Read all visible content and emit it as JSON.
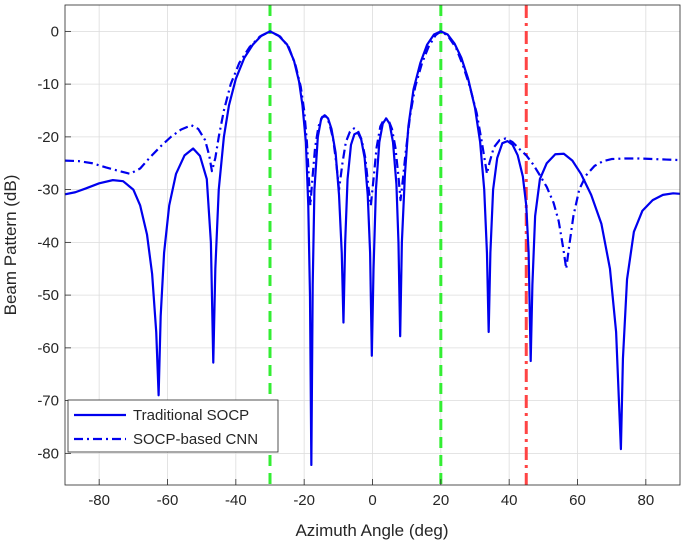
{
  "chart_data": {
    "type": "line",
    "title": "",
    "xlabel": "Azimuth Angle (deg)",
    "ylabel": "Beam Pattern (dB)",
    "xlim": [
      -90,
      90
    ],
    "ylim": [
      -86,
      5
    ],
    "xticks": [
      -80,
      -60,
      -40,
      -20,
      0,
      20,
      40,
      60,
      80
    ],
    "yticks": [
      0,
      -10,
      -20,
      -30,
      -40,
      -50,
      -60,
      -70,
      -80
    ],
    "grid": true,
    "legend": "bottom-left",
    "colors": {
      "series": "#0000ee",
      "desired": "#33ee33",
      "interference": "#ff4444",
      "grid": "#dcdcdc",
      "axis": "#262626"
    },
    "markers": [
      {
        "kind": "desired",
        "x": -30,
        "style": "dashed"
      },
      {
        "kind": "desired",
        "x": 20,
        "style": "dashed"
      },
      {
        "kind": "interference",
        "x": 45,
        "style": "dash-dot"
      }
    ],
    "series": [
      {
        "name": "Traditional SOCP",
        "style": "solid",
        "points": [
          [
            -90,
            -30.9
          ],
          [
            -87,
            -30.5
          ],
          [
            -84,
            -29.8
          ],
          [
            -80,
            -28.8
          ],
          [
            -76,
            -28.2
          ],
          [
            -73,
            -28.4
          ],
          [
            -70,
            -30
          ],
          [
            -68,
            -33
          ],
          [
            -66,
            -38.5
          ],
          [
            -64.5,
            -46
          ],
          [
            -63.3,
            -57
          ],
          [
            -62.6,
            -69
          ],
          [
            -62,
            -54
          ],
          [
            -61,
            -42
          ],
          [
            -59.5,
            -33
          ],
          [
            -57.5,
            -27
          ],
          [
            -55,
            -23.5
          ],
          [
            -52.5,
            -22.2
          ],
          [
            -50.5,
            -23.6
          ],
          [
            -48.5,
            -28
          ],
          [
            -47.3,
            -40
          ],
          [
            -46.6,
            -62.8
          ],
          [
            -46,
            -45
          ],
          [
            -45,
            -30
          ],
          [
            -43.5,
            -20
          ],
          [
            -42,
            -14
          ],
          [
            -40,
            -9
          ],
          [
            -37.5,
            -5
          ],
          [
            -35,
            -2.5
          ],
          [
            -32.5,
            -0.8
          ],
          [
            -30,
            0
          ],
          [
            -27.5,
            -0.8
          ],
          [
            -25,
            -2.5
          ],
          [
            -23,
            -5.5
          ],
          [
            -21.5,
            -9.5
          ],
          [
            -20.5,
            -14
          ],
          [
            -19.5,
            -21
          ],
          [
            -18.8,
            -33
          ],
          [
            -18.3,
            -50
          ],
          [
            -17.9,
            -82.2
          ],
          [
            -17.5,
            -48
          ],
          [
            -17,
            -30
          ],
          [
            -16,
            -20
          ],
          [
            -15,
            -16.5
          ],
          [
            -14,
            -15.9
          ],
          [
            -13,
            -16.5
          ],
          [
            -12,
            -18.5
          ],
          [
            -10.8,
            -23
          ],
          [
            -9.8,
            -31
          ],
          [
            -9,
            -42
          ],
          [
            -8.5,
            -55.2
          ],
          [
            -8,
            -40
          ],
          [
            -7.3,
            -28
          ],
          [
            -6.3,
            -21.5
          ],
          [
            -5.3,
            -19.5
          ],
          [
            -4.3,
            -19.2
          ],
          [
            -3.3,
            -20.5
          ],
          [
            -2.3,
            -24
          ],
          [
            -1.4,
            -31
          ],
          [
            -0.7,
            -42
          ],
          [
            -0.2,
            -61.5
          ],
          [
            0.3,
            -45
          ],
          [
            1,
            -30
          ],
          [
            2,
            -21
          ],
          [
            3,
            -17.5
          ],
          [
            4,
            -16.5
          ],
          [
            5,
            -17.5
          ],
          [
            6,
            -21
          ],
          [
            7,
            -29
          ],
          [
            7.6,
            -40
          ],
          [
            8.1,
            -57.8
          ],
          [
            8.6,
            -40
          ],
          [
            9.5,
            -27
          ],
          [
            10.5,
            -18
          ],
          [
            12,
            -11
          ],
          [
            14,
            -6
          ],
          [
            16,
            -2.5
          ],
          [
            18,
            -0.6
          ],
          [
            20,
            0
          ],
          [
            22,
            -0.6
          ],
          [
            24,
            -2.3
          ],
          [
            26,
            -5
          ],
          [
            28,
            -9
          ],
          [
            30,
            -14.5
          ],
          [
            31.5,
            -21
          ],
          [
            32.7,
            -30
          ],
          [
            33.5,
            -42
          ],
          [
            34,
            -57
          ],
          [
            34.5,
            -42
          ],
          [
            35.3,
            -30
          ],
          [
            36.5,
            -24
          ],
          [
            38,
            -21.2
          ],
          [
            39.5,
            -20.8
          ],
          [
            41,
            -21.5
          ],
          [
            42.5,
            -23.5
          ],
          [
            44,
            -27.5
          ],
          [
            45,
            -33
          ],
          [
            45.7,
            -42
          ],
          [
            46.3,
            -62.5
          ],
          [
            46.8,
            -48
          ],
          [
            47.6,
            -35
          ],
          [
            49,
            -28
          ],
          [
            51,
            -25
          ],
          [
            53.5,
            -23.3
          ],
          [
            56,
            -23.2
          ],
          [
            58.5,
            -24.5
          ],
          [
            61,
            -27
          ],
          [
            64,
            -31
          ],
          [
            67,
            -36.5
          ],
          [
            69.5,
            -45
          ],
          [
            71.3,
            -57
          ],
          [
            72.7,
            -79.2
          ],
          [
            73.3,
            -62
          ],
          [
            74.5,
            -47
          ],
          [
            76.5,
            -38
          ],
          [
            79,
            -34
          ],
          [
            82,
            -32
          ],
          [
            85,
            -31
          ],
          [
            88,
            -30.7
          ],
          [
            90,
            -30.8
          ]
        ]
      },
      {
        "name": "SOCP-based CNN",
        "style": "dash-dot",
        "points": [
          [
            -90,
            -24.5
          ],
          [
            -86,
            -24.6
          ],
          [
            -82,
            -25
          ],
          [
            -78,
            -25.8
          ],
          [
            -74,
            -26.5
          ],
          [
            -71,
            -27
          ],
          [
            -68,
            -26
          ],
          [
            -65,
            -23.8
          ],
          [
            -62,
            -21.8
          ],
          [
            -59,
            -20
          ],
          [
            -56,
            -18.6
          ],
          [
            -53,
            -17.8
          ],
          [
            -51,
            -18.5
          ],
          [
            -49,
            -20.6
          ],
          [
            -47.8,
            -23.5
          ],
          [
            -47,
            -26.5
          ],
          [
            -46,
            -24
          ],
          [
            -45,
            -20
          ],
          [
            -43.5,
            -15
          ],
          [
            -41.5,
            -10
          ],
          [
            -39,
            -6
          ],
          [
            -36,
            -3
          ],
          [
            -33,
            -1
          ],
          [
            -30,
            0
          ],
          [
            -27,
            -1
          ],
          [
            -24.5,
            -3
          ],
          [
            -22.5,
            -6.5
          ],
          [
            -21,
            -10.5
          ],
          [
            -20,
            -15
          ],
          [
            -19.2,
            -21
          ],
          [
            -18.6,
            -28
          ],
          [
            -18.2,
            -33
          ],
          [
            -17.6,
            -28
          ],
          [
            -16.8,
            -22
          ],
          [
            -15.8,
            -18
          ],
          [
            -14.7,
            -16.2
          ],
          [
            -13.6,
            -16.1
          ],
          [
            -12.6,
            -17.5
          ],
          [
            -11.5,
            -20.5
          ],
          [
            -10.6,
            -25
          ],
          [
            -9.8,
            -30
          ],
          [
            -8.8,
            -25
          ],
          [
            -7.8,
            -21
          ],
          [
            -6.6,
            -19
          ],
          [
            -5.4,
            -18.4
          ],
          [
            -4.3,
            -18.8
          ],
          [
            -3.2,
            -20.5
          ],
          [
            -2.1,
            -24
          ],
          [
            -1.2,
            -29.5
          ],
          [
            -0.5,
            -33
          ],
          [
            0.3,
            -28
          ],
          [
            1.2,
            -22
          ],
          [
            2.3,
            -18
          ],
          [
            3.5,
            -16.5
          ],
          [
            4.6,
            -16.7
          ],
          [
            5.7,
            -18.5
          ],
          [
            6.7,
            -22
          ],
          [
            7.6,
            -27.5
          ],
          [
            8.2,
            -32
          ],
          [
            8.9,
            -28
          ],
          [
            9.7,
            -23
          ],
          [
            11,
            -16
          ],
          [
            12.5,
            -10.5
          ],
          [
            14.5,
            -6
          ],
          [
            16.5,
            -2.8
          ],
          [
            18.5,
            -0.7
          ],
          [
            20,
            0
          ],
          [
            22,
            -0.8
          ],
          [
            24.5,
            -3.2
          ],
          [
            26.5,
            -6.5
          ],
          [
            28.5,
            -10.5
          ],
          [
            30.5,
            -15.5
          ],
          [
            32,
            -21
          ],
          [
            33,
            -25
          ],
          [
            33.5,
            -27
          ],
          [
            34.2,
            -25
          ],
          [
            35.5,
            -22
          ],
          [
            37.2,
            -20.6
          ],
          [
            39,
            -20.3
          ],
          [
            41,
            -21
          ],
          [
            43,
            -22.3
          ],
          [
            45,
            -23.5
          ],
          [
            47,
            -25.2
          ],
          [
            49,
            -27.3
          ],
          [
            51,
            -29.5
          ],
          [
            53,
            -32.5
          ],
          [
            54.5,
            -36
          ],
          [
            55.8,
            -41
          ],
          [
            56.7,
            -45
          ],
          [
            57.5,
            -41
          ],
          [
            58.8,
            -35
          ],
          [
            60.5,
            -30
          ],
          [
            62.5,
            -27.3
          ],
          [
            65,
            -25.5
          ],
          [
            67.5,
            -24.6
          ],
          [
            70,
            -24.2
          ],
          [
            74,
            -24.1
          ],
          [
            78,
            -24.1
          ],
          [
            82,
            -24.2
          ],
          [
            86,
            -24.3
          ],
          [
            90,
            -24.4
          ]
        ]
      }
    ]
  }
}
